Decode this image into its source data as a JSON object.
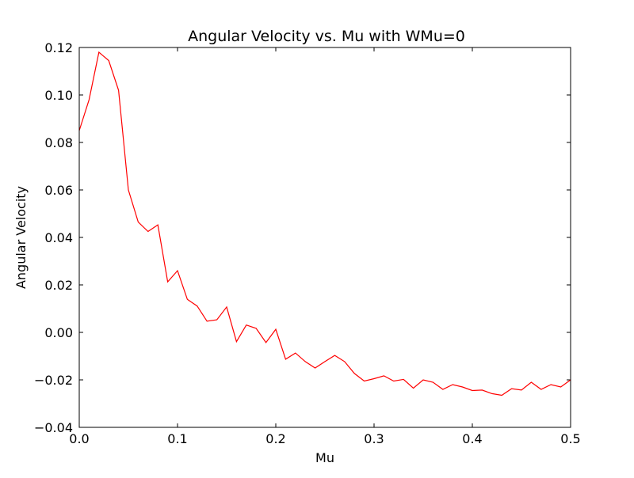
{
  "chart_data": {
    "type": "line",
    "title": "Angular Velocity vs. Mu with WMu=0",
    "xlabel": "Mu",
    "ylabel": "Angular Velocity",
    "xlim": [
      0.0,
      0.5
    ],
    "ylim": [
      -0.04,
      0.12
    ],
    "xticks": [
      0.0,
      0.1,
      0.2,
      0.3,
      0.4,
      0.5
    ],
    "xtick_labels": [
      "0.0",
      "0.1",
      "0.2",
      "0.3",
      "0.4",
      "0.5"
    ],
    "yticks": [
      -0.04,
      -0.02,
      0.0,
      0.02,
      0.04,
      0.06,
      0.08,
      0.1,
      0.12
    ],
    "ytick_labels": [
      "−0.04",
      "−0.02",
      "0.00",
      "0.02",
      "0.04",
      "0.06",
      "0.08",
      "0.10",
      "0.12"
    ],
    "grid": false,
    "series": [
      {
        "color": "#ff0000",
        "x": [
          0.0,
          0.01,
          0.02,
          0.03,
          0.04,
          0.05,
          0.06,
          0.07,
          0.08,
          0.09,
          0.1,
          0.11,
          0.12,
          0.13,
          0.14,
          0.15,
          0.16,
          0.17,
          0.18,
          0.19,
          0.2,
          0.21,
          0.22,
          0.23,
          0.24,
          0.25,
          0.26,
          0.27,
          0.28,
          0.29,
          0.3,
          0.31,
          0.32,
          0.33,
          0.34,
          0.35,
          0.36,
          0.37,
          0.38,
          0.39,
          0.4,
          0.41,
          0.42,
          0.43,
          0.44,
          0.45,
          0.46,
          0.47,
          0.48,
          0.49,
          0.5
        ],
        "y": [
          0.085,
          0.098,
          0.118,
          0.1145,
          0.102,
          0.06,
          0.0465,
          0.0425,
          0.0453,
          0.0213,
          0.026,
          0.0139,
          0.0111,
          0.0047,
          0.0053,
          0.0107,
          -0.0039,
          0.0031,
          0.0017,
          -0.0043,
          0.0013,
          -0.0113,
          -0.0087,
          -0.0123,
          -0.015,
          -0.0123,
          -0.0097,
          -0.0123,
          -0.0173,
          -0.0205,
          -0.0195,
          -0.0183,
          -0.0205,
          -0.0198,
          -0.0235,
          -0.02,
          -0.021,
          -0.024,
          -0.022,
          -0.023,
          -0.0245,
          -0.0243,
          -0.0258,
          -0.0265,
          -0.0237,
          -0.0243,
          -0.021,
          -0.024,
          -0.022,
          -0.023,
          -0.02
        ]
      }
    ]
  }
}
